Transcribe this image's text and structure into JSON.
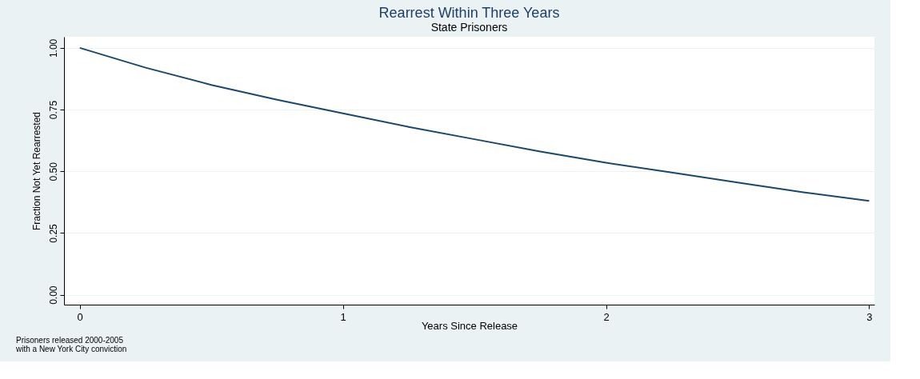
{
  "chart_data": {
    "type": "line",
    "title": "Rearrest Within Three Years",
    "subtitle": "State Prisoners",
    "xlabel": "Years Since Release",
    "ylabel": "Fraction Not Yet Rearrested",
    "x": [
      0,
      0.25,
      0.5,
      0.75,
      1,
      1.25,
      1.5,
      1.75,
      2,
      2.25,
      2.5,
      2.75,
      3
    ],
    "series": [
      {
        "color": "#1a476f",
        "values": [
          1.0,
          0.92,
          0.85,
          0.79,
          0.735,
          0.68,
          0.63,
          0.58,
          0.535,
          0.495,
          0.455,
          0.415,
          0.38
        ]
      }
    ],
    "xlim": [
      -0.06,
      3.02
    ],
    "xticks": [
      0,
      1,
      2,
      3
    ],
    "ylim": [
      -0.04,
      1.045
    ],
    "yticks": [
      {
        "value": 0,
        "label": "0.00"
      },
      {
        "value": 0.25,
        "label": "0.25"
      },
      {
        "value": 0.5,
        "label": "0.50"
      },
      {
        "value": 0.75,
        "label": "0.75"
      },
      {
        "value": 1,
        "label": "1.00"
      }
    ],
    "grid": "y",
    "marker": "none",
    "line_style": "solid",
    "annotations": [
      "Prisoners released 2000-2005",
      "with a New York City conviction"
    ]
  }
}
